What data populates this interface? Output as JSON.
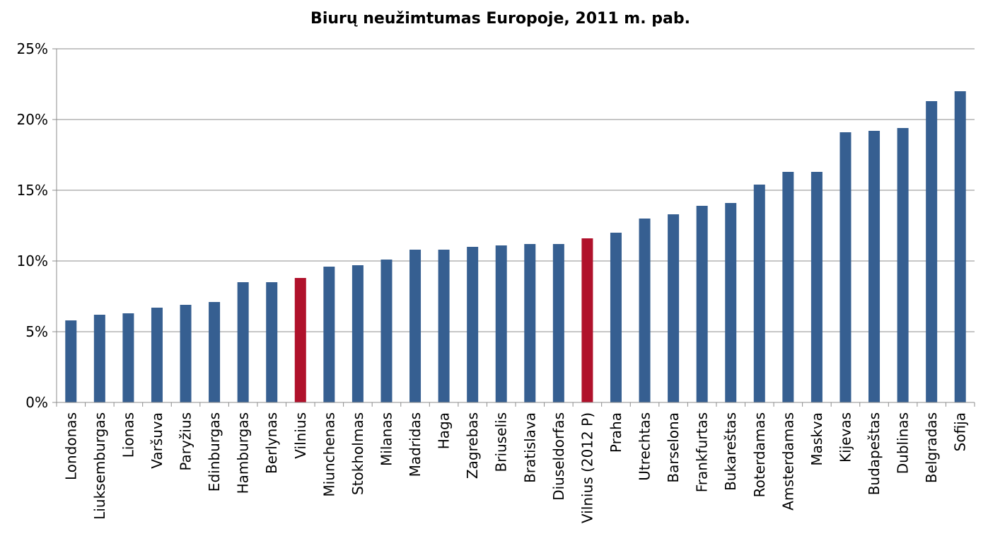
{
  "chart_data": {
    "type": "bar",
    "title": "Biurų neužimtumas Europoje, 2011 m. pab.",
    "xlabel": "",
    "ylabel": "",
    "ylim": [
      0,
      25
    ],
    "yticks": [
      "0%",
      "5%",
      "10%",
      "15%",
      "20%",
      "25%"
    ],
    "ytick_values": [
      0,
      5,
      10,
      15,
      20,
      25
    ],
    "grid": true,
    "legend": "none",
    "categories": [
      "Londonas",
      "Liuksemburgas",
      "Lionas",
      "Varšuva",
      "Paryžius",
      "Edinburgas",
      "Hamburgas",
      "Berlynas",
      "Vilnius",
      "Miunchenas",
      "Stokholmas",
      "Milanas",
      "Madridas",
      "Haga",
      "Zagrebas",
      "Briuselis",
      "Bratislava",
      "Diuseldorfas",
      "Vilnius (2012 P)",
      "Praha",
      "Utrechtas",
      "Barselona",
      "Frankfurtas",
      "Bukareštas",
      "Roterdamas",
      "Amsterdamas",
      "Maskva",
      "Kijevas",
      "Budapeštas",
      "Dublinas",
      "Belgradas",
      "Sofija"
    ],
    "values": [
      5.8,
      6.2,
      6.3,
      6.7,
      6.9,
      7.1,
      8.5,
      8.5,
      8.8,
      9.6,
      9.7,
      10.1,
      10.8,
      10.8,
      11.0,
      11.1,
      11.2,
      11.2,
      11.6,
      12.0,
      13.0,
      13.3,
      13.9,
      14.1,
      15.4,
      16.3,
      16.3,
      19.1,
      19.2,
      19.4,
      21.3,
      22.0
    ],
    "colors": {
      "default": "#365f91",
      "highlight": "#b0112b",
      "highlighted_categories": [
        "Vilnius",
        "Vilnius (2012 P)"
      ],
      "grid": "#8c8c8c",
      "axis": "#8c8c8c"
    }
  }
}
